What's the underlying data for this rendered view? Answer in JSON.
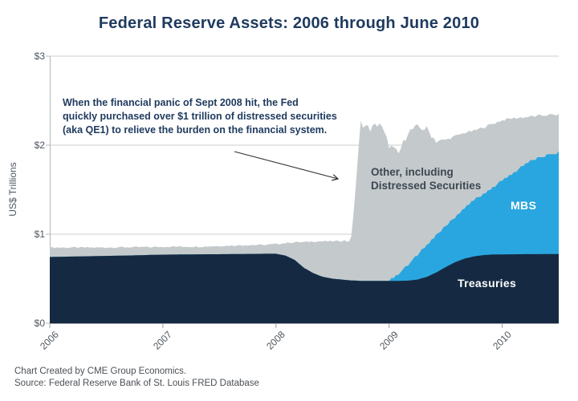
{
  "title": "Federal Reserve Assets: 2006 through June 2010",
  "annotation": "When the financial panic of Sept 2008 hit, the Fed\nquickly purchased over $1 trillion of distressed securities\n(aka QE1) to relieve the burden on the financial system.",
  "chart_labels": {
    "other": "Other, including\nDistressed Securities",
    "mbs": "MBS",
    "treasuries": "Treasuries"
  },
  "footer": {
    "line1": "Chart Created by CME Group Economics.",
    "line2": "Source: Federal Reserve Bank of St. Louis FRED Database"
  },
  "chart_data": {
    "type": "area",
    "stacked": true,
    "title": "Federal Reserve Assets: 2006 through June 2010",
    "xlabel": "",
    "ylabel": "US$ Trillions",
    "ylim": [
      0,
      3
    ],
    "y_ticks": [
      "$0",
      "$1",
      "$2",
      "$3"
    ],
    "y_tick_values": [
      0,
      1,
      2,
      3
    ],
    "x_ticks": [
      "2006",
      "2007",
      "2008",
      "2009",
      "2010"
    ],
    "x_range": "Jan 2006 through Jun 2010, monthly values",
    "grid": "horizontal gridlines at $1, $2, $3",
    "legend_position": "labels drawn inside stacked areas",
    "units": "US$ trillions",
    "colors": {
      "gridline": "#c9cccf",
      "axis": "#9aa0a5",
      "axis_light": "#b3b8bb",
      "arrow": "#2b3137"
    },
    "series": [
      {
        "key": "treasuries",
        "name": "Treasuries",
        "color": "#152a42",
        "values": [
          0.744,
          0.746,
          0.748,
          0.75,
          0.752,
          0.754,
          0.756,
          0.758,
          0.76,
          0.762,
          0.765,
          0.768,
          0.77,
          0.771,
          0.772,
          0.773,
          0.774,
          0.775,
          0.775,
          0.776,
          0.777,
          0.778,
          0.779,
          0.78,
          0.78,
          0.76,
          0.71,
          0.62,
          0.56,
          0.52,
          0.5,
          0.49,
          0.48,
          0.476,
          0.475,
          0.475,
          0.475,
          0.476,
          0.478,
          0.49,
          0.52,
          0.57,
          0.63,
          0.685,
          0.725,
          0.75,
          0.765,
          0.772,
          0.773,
          0.774,
          0.775,
          0.776,
          0.776,
          0.777,
          0.777
        ]
      },
      {
        "key": "mbs",
        "name": "MBS",
        "color": "#29a6df",
        "values": [
          0,
          0,
          0,
          0,
          0,
          0,
          0,
          0,
          0,
          0,
          0,
          0,
          0,
          0,
          0,
          0,
          0,
          0,
          0,
          0,
          0,
          0,
          0,
          0,
          0,
          0,
          0,
          0,
          0,
          0,
          0,
          0,
          0,
          0,
          0,
          0,
          0.0,
          0.07,
          0.18,
          0.28,
          0.36,
          0.42,
          0.47,
          0.5,
          0.56,
          0.63,
          0.69,
          0.75,
          0.83,
          0.9,
          0.98,
          1.05,
          1.09,
          1.12,
          1.14
        ]
      },
      {
        "key": "other",
        "name": "Other, including Distressed Securities",
        "color": "#c4c9cc",
        "values": [
          0.106,
          0.104,
          0.102,
          0.1,
          0.098,
          0.096,
          0.095,
          0.094,
          0.093,
          0.092,
          0.09,
          0.087,
          0.09,
          0.089,
          0.088,
          0.087,
          0.086,
          0.09,
          0.093,
          0.095,
          0.098,
          0.1,
          0.1,
          0.1,
          0.11,
          0.14,
          0.2,
          0.29,
          0.36,
          0.4,
          0.42,
          0.434,
          0.465,
          1.775,
          1.705,
          1.775,
          1.525,
          1.354,
          1.492,
          1.43,
          1.3,
          1.06,
          0.96,
          0.915,
          0.855,
          0.78,
          0.745,
          0.718,
          0.677,
          0.626,
          0.555,
          0.494,
          0.464,
          0.443,
          0.423
        ]
      }
    ]
  }
}
